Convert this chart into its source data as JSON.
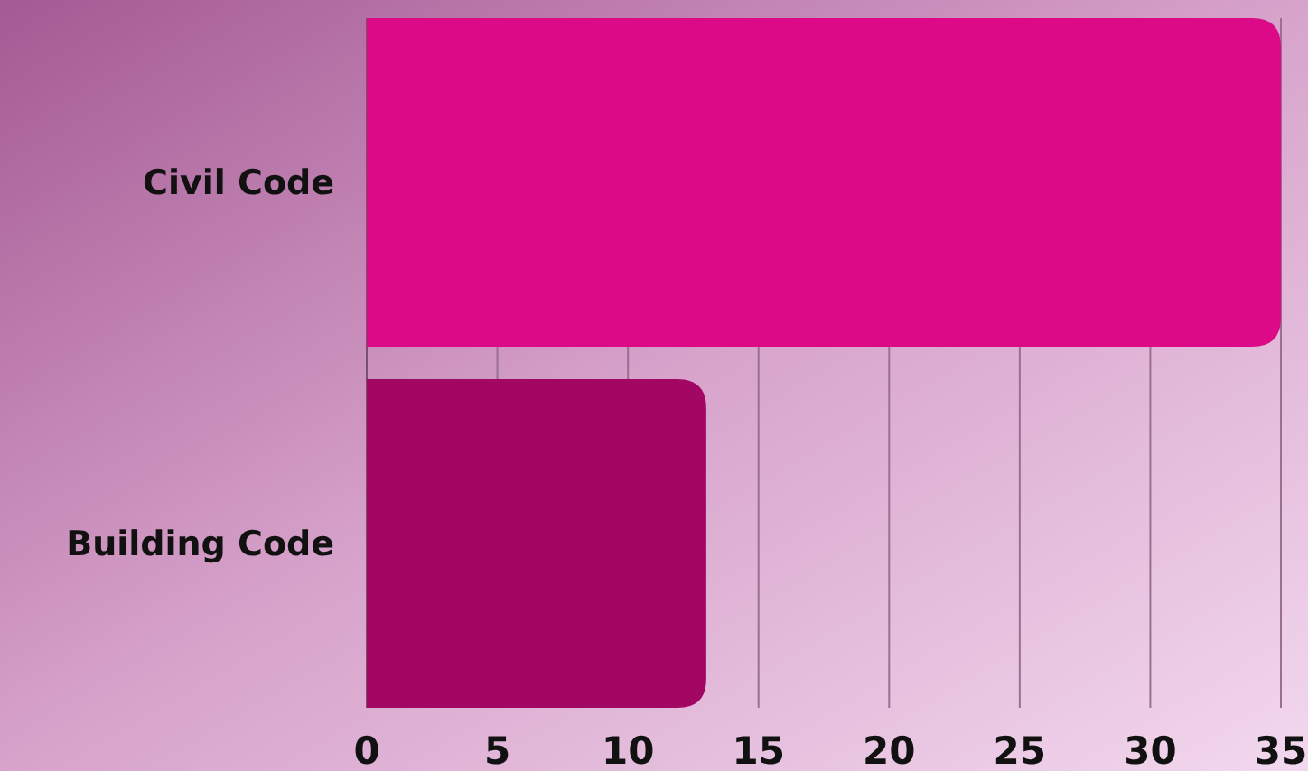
{
  "chart_data": {
    "type": "bar",
    "orientation": "horizontal",
    "categories": [
      "Civil Code",
      "Building Code"
    ],
    "values": [
      35,
      13
    ],
    "colors": [
      "#dc0a87",
      "#a20764"
    ],
    "xlim": [
      0,
      35
    ],
    "xticks": [
      0,
      5,
      10,
      15,
      20,
      25,
      30,
      35
    ],
    "grid": "x"
  }
}
